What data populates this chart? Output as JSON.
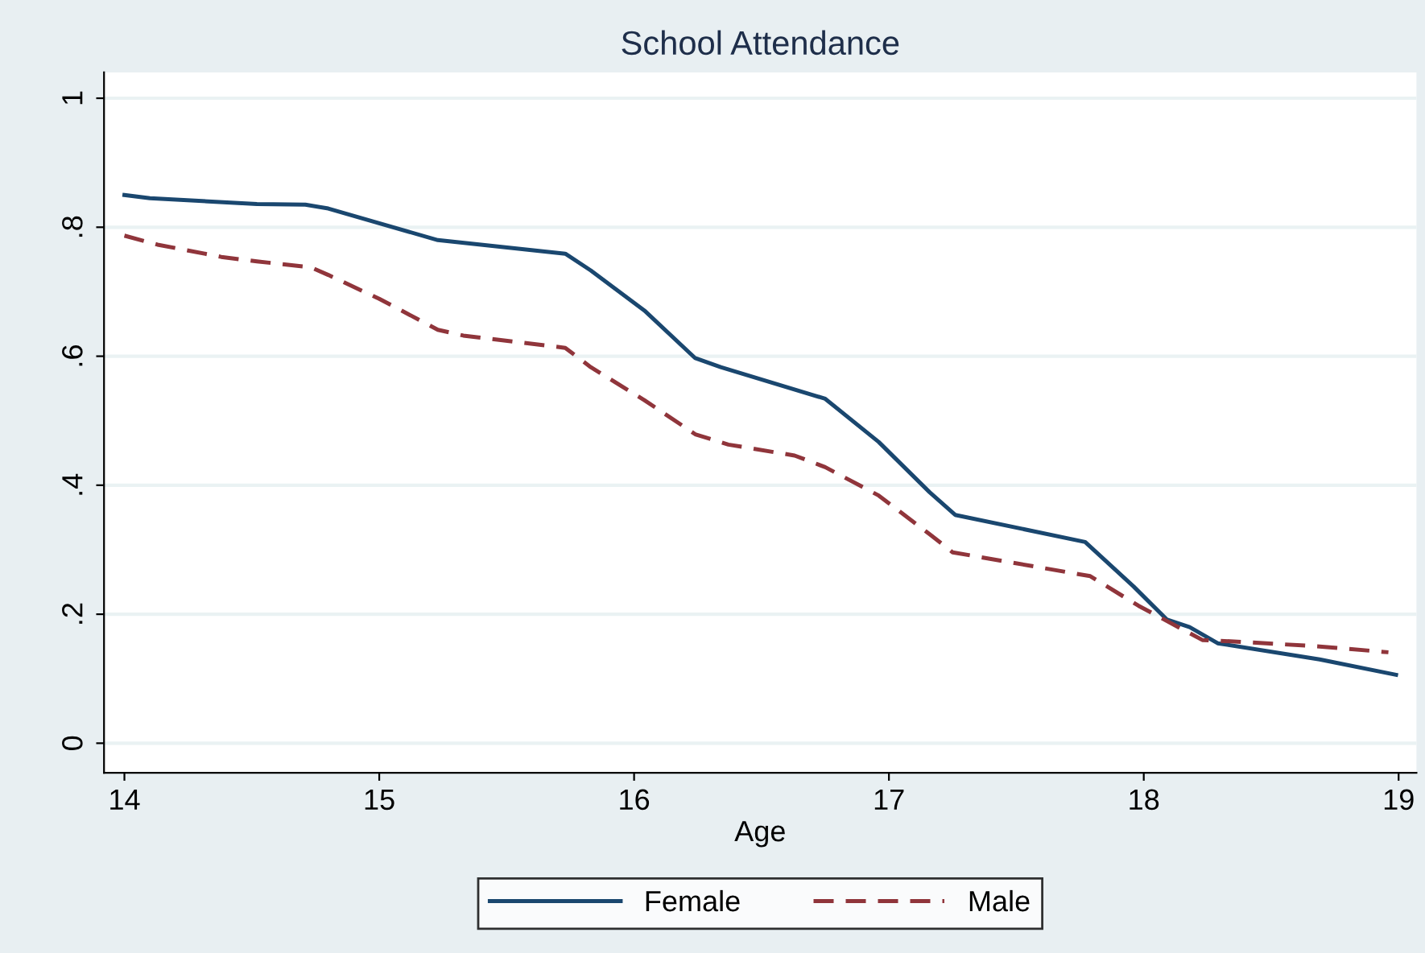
{
  "chart_data": {
    "type": "line",
    "title": "School Attendance",
    "xlabel": "Age",
    "xlim": [
      13.92,
      19.07
    ],
    "xticks": [
      14,
      15,
      16,
      17,
      18,
      19
    ],
    "ylim": [
      -0.046,
      1.04
    ],
    "yticks": [
      0,
      {
        "value": 0.2,
        "label": ".2"
      },
      {
        "value": 0.4,
        "label": ".4"
      },
      {
        "value": 0.6,
        "label": ".6"
      },
      {
        "value": 0.8,
        "label": ".8"
      },
      1
    ],
    "grid": "y",
    "legend": "bottom",
    "series": [
      {
        "name": "Female",
        "color": "#1a476f",
        "line_style": "solid",
        "x": [
          14,
          14.1,
          14.52,
          14.71,
          14.8,
          15.23,
          15.73,
          15.83,
          16.04,
          16.24,
          16.34,
          16.75,
          16.96,
          17.16,
          17.26,
          17.77,
          17.96,
          18.09,
          18.18,
          18.29,
          18.69,
          18.99
        ],
        "values": [
          0.85,
          0.845,
          0.836,
          0.835,
          0.829,
          0.78,
          0.759,
          0.733,
          0.671,
          0.597,
          0.583,
          0.534,
          0.467,
          0.389,
          0.354,
          0.312,
          0.243,
          0.192,
          0.18,
          0.155,
          0.13,
          0.106
        ]
      },
      {
        "name": "Male",
        "color": "#90353b",
        "line_style": "dashed",
        "x": [
          14,
          14.13,
          14.38,
          14.52,
          14.73,
          14.8,
          15.0,
          15.23,
          15.33,
          15.73,
          15.83,
          16.04,
          16.24,
          16.37,
          16.63,
          16.75,
          16.96,
          17.16,
          17.25,
          17.79,
          17.98,
          18.23,
          18.39,
          18.69,
          18.96
        ],
        "values": [
          0.787,
          0.773,
          0.754,
          0.747,
          0.738,
          0.726,
          0.689,
          0.641,
          0.632,
          0.613,
          0.583,
          0.532,
          0.479,
          0.463,
          0.446,
          0.428,
          0.384,
          0.324,
          0.296,
          0.259,
          0.213,
          0.16,
          0.157,
          0.15,
          0.141
        ]
      }
    ]
  }
}
